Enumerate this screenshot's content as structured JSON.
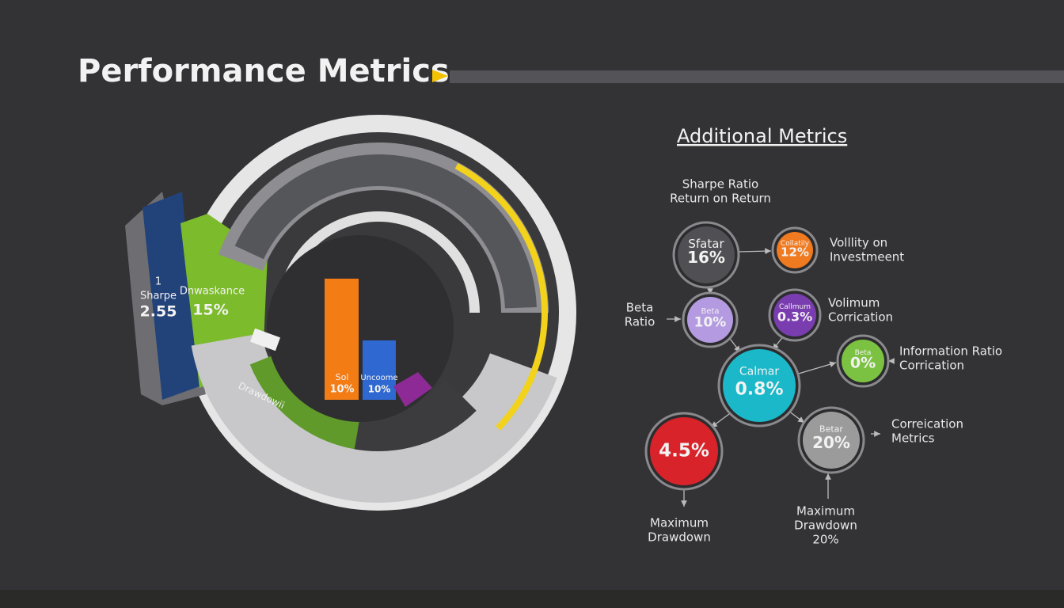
{
  "header": {
    "title": "Performance Metrics"
  },
  "radial": {
    "blue": {
      "lines": [
        "1",
        "Sharpe"
      ],
      "value": "2.55"
    },
    "green": {
      "label": "Dnwaskance",
      "value": "15%"
    },
    "bars": [
      {
        "label": "Sol",
        "value": "10%"
      },
      {
        "label": "Uncoome",
        "value": "10%"
      }
    ],
    "arc_label": "Drawdowii"
  },
  "panel": {
    "title": "Additional Metrics",
    "nodes": [
      {
        "label": "Sfatar",
        "value": "16%"
      },
      {
        "label": "Collatily",
        "value": "12%"
      },
      {
        "label": "Beta",
        "value": "10%"
      },
      {
        "label": "Callmum",
        "value": "0.3%"
      },
      {
        "label": "Beta",
        "value": "0%"
      },
      {
        "label": "Calmar",
        "value": "0.8%"
      },
      {
        "value": "4.5%"
      },
      {
        "label": "Betar",
        "value": "20%"
      }
    ],
    "captions": [
      {
        "lines": [
          "Sharpe Ratio",
          "Return on Return"
        ]
      },
      {
        "lines": [
          "Volllity on",
          "Investmeent"
        ]
      },
      {
        "lines": [
          "Beta",
          "Ratio"
        ]
      },
      {
        "lines": [
          "Volimum",
          "Corrication"
        ]
      },
      {
        "lines": [
          "Information Ratio",
          "Corrication"
        ]
      },
      {
        "lines": [
          "Correication",
          "Metrics"
        ]
      },
      {
        "lines": [
          "Maximum",
          "Drawdown"
        ]
      },
      {
        "lines": [
          "Maximum",
          "Drawdown",
          "20%"
        ]
      }
    ]
  }
}
